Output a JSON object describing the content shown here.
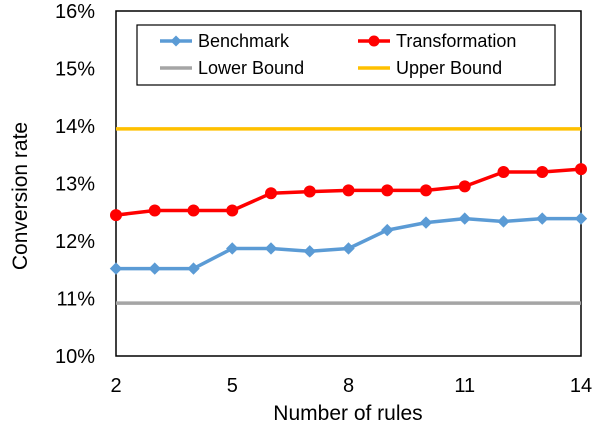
{
  "chart_data": {
    "type": "line",
    "xlabel": "Number of rules",
    "ylabel": "Conversion rate",
    "xlim": [
      2,
      14
    ],
    "ylim": [
      10,
      16
    ],
    "x_ticks": [
      2,
      5,
      8,
      11,
      14
    ],
    "y_ticks": [
      10,
      11,
      12,
      13,
      14,
      15,
      16
    ],
    "x_tick_labels": [
      "2",
      "5",
      "8",
      "11",
      "14"
    ],
    "y_tick_labels": [
      "10%",
      "11%",
      "12%",
      "13%",
      "14%",
      "15%",
      "16%"
    ],
    "grid": false,
    "legend_position": "top",
    "x": [
      2,
      3,
      4,
      5,
      6,
      7,
      8,
      9,
      10,
      11,
      12,
      13,
      14
    ],
    "series": [
      {
        "name": "Benchmark",
        "color": "#5b9bd5",
        "marker": "diamond",
        "values": [
          11.52,
          11.52,
          11.52,
          11.87,
          11.87,
          11.82,
          11.87,
          12.19,
          12.32,
          12.39,
          12.34,
          12.39,
          12.39
        ]
      },
      {
        "name": "Transformation",
        "color": "#ff0000",
        "marker": "circle",
        "values": [
          12.45,
          12.53,
          12.53,
          12.53,
          12.83,
          12.86,
          12.88,
          12.88,
          12.88,
          12.95,
          13.2,
          13.2,
          13.25
        ]
      },
      {
        "name": "Lower Bound",
        "color": "#a5a5a5",
        "marker": "none",
        "values": [
          10.92,
          10.92,
          10.92,
          10.92,
          10.92,
          10.92,
          10.92,
          10.92,
          10.92,
          10.92,
          10.92,
          10.92,
          10.92
        ]
      },
      {
        "name": "Upper Bound",
        "color": "#ffc000",
        "marker": "none",
        "values": [
          13.95,
          13.95,
          13.95,
          13.95,
          13.95,
          13.95,
          13.95,
          13.95,
          13.95,
          13.95,
          13.95,
          13.95,
          13.95
        ]
      }
    ]
  }
}
